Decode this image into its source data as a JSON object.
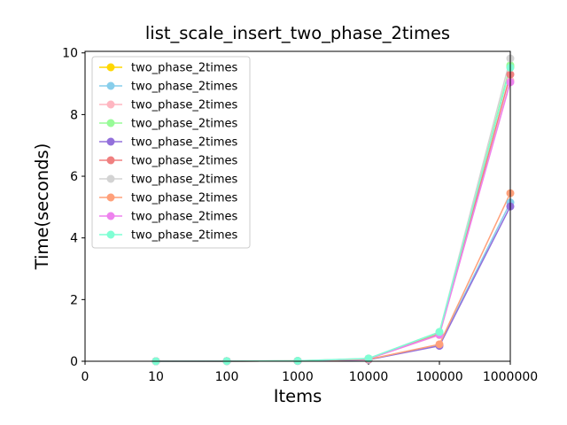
{
  "chart_data": {
    "type": "line",
    "title": "list_scale_insert_two_phase_2times",
    "xlabel": "Items",
    "ylabel": "Time(seconds)",
    "categories": [
      "0",
      "10",
      "100",
      "1000",
      "10000",
      "100000",
      "1000000"
    ],
    "yticks": [
      "0",
      "2",
      "4",
      "6",
      "8",
      "10"
    ],
    "ylim": [
      0,
      10.05
    ],
    "grid": false,
    "legend_position": "top-left",
    "series": [
      {
        "name": "two_phase_2times",
        "color": "#FFD700",
        "x": [
          1,
          2,
          3,
          4,
          5,
          6
        ],
        "values": [
          0.001,
          0.005,
          0.012,
          0.08,
          0.9,
          9.55
        ]
      },
      {
        "name": "two_phase_2times",
        "color": "#87CEEB",
        "x": [
          1,
          2,
          3,
          4,
          5,
          6
        ],
        "values": [
          0.001,
          0.004,
          0.01,
          0.05,
          0.52,
          5.15
        ]
      },
      {
        "name": "two_phase_2times",
        "color": "#FFB6C1",
        "x": [
          1,
          2,
          3,
          4,
          5,
          6
        ],
        "values": [
          0.001,
          0.005,
          0.012,
          0.08,
          0.85,
          9.1
        ]
      },
      {
        "name": "two_phase_2times",
        "color": "#98FB98",
        "x": [
          1,
          2,
          3,
          4,
          5,
          6
        ],
        "values": [
          0.001,
          0.005,
          0.013,
          0.08,
          0.92,
          9.6
        ]
      },
      {
        "name": "two_phase_2times",
        "color": "#9370DB",
        "x": [
          1,
          2,
          3,
          4,
          5,
          6
        ],
        "values": [
          0.001,
          0.004,
          0.01,
          0.05,
          0.5,
          5.02
        ]
      },
      {
        "name": "two_phase_2times",
        "color": "#F08080",
        "x": [
          1,
          2,
          3,
          4,
          5,
          6
        ],
        "values": [
          0.001,
          0.005,
          0.012,
          0.08,
          0.88,
          9.3
        ]
      },
      {
        "name": "two_phase_2times",
        "color": "#D3D3D3",
        "x": [
          1,
          2,
          3,
          4,
          5,
          6
        ],
        "values": [
          0.001,
          0.005,
          0.013,
          0.09,
          0.95,
          9.82
        ]
      },
      {
        "name": "two_phase_2times",
        "color": "#FFA07A",
        "x": [
          1,
          2,
          3,
          4,
          5,
          6
        ],
        "values": [
          0.001,
          0.004,
          0.011,
          0.06,
          0.55,
          5.45
        ]
      },
      {
        "name": "two_phase_2times",
        "color": "#EE82EE",
        "x": [
          1,
          2,
          3,
          4,
          5,
          6
        ],
        "values": [
          0.001,
          0.005,
          0.012,
          0.08,
          0.86,
          9.05
        ]
      },
      {
        "name": "two_phase_2times",
        "color": "#7FFFD4",
        "x": [
          1,
          2,
          3,
          4,
          5,
          6
        ],
        "values": [
          0.001,
          0.005,
          0.013,
          0.09,
          0.95,
          9.52
        ]
      }
    ]
  }
}
